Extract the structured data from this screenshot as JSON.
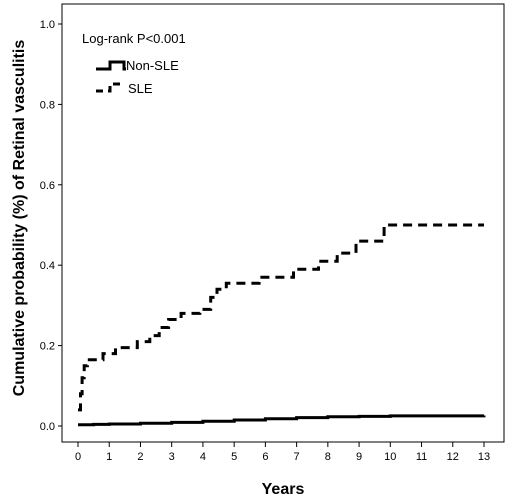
{
  "chart_data": {
    "type": "line",
    "title": "",
    "xlabel": "Years",
    "ylabel": "Cumulative probability (%) of Retinal vasculitis",
    "xlim": [
      0,
      13
    ],
    "ylim": [
      0,
      1.0
    ],
    "x_ticks": [
      "0",
      "1",
      "2",
      "3",
      "4",
      "5",
      "6",
      "7",
      "8",
      "9",
      "10",
      "11",
      "12",
      "13"
    ],
    "y_ticks": [
      "0.0",
      "0.2",
      "0.4",
      "0.6",
      "0.8",
      "1.0"
    ],
    "grid": false,
    "legend_position": "top-left",
    "annotation": "Log-rank P<0.001",
    "series": [
      {
        "name": "Non-SLE",
        "style": "solid",
        "color": "#000000",
        "step_points": [
          [
            0,
            0.003
          ],
          [
            0.5,
            0.004
          ],
          [
            1.0,
            0.005
          ],
          [
            2.0,
            0.007
          ],
          [
            3.0,
            0.009
          ],
          [
            4.0,
            0.012
          ],
          [
            5.0,
            0.015
          ],
          [
            6.0,
            0.018
          ],
          [
            7.0,
            0.021
          ],
          [
            8.0,
            0.023
          ],
          [
            9.0,
            0.024
          ],
          [
            10.0,
            0.025
          ],
          [
            13.0,
            0.026
          ]
        ]
      },
      {
        "name": "SLE",
        "style": "dashed",
        "color": "#000000",
        "step_points": [
          [
            0,
            0.04
          ],
          [
            0.08,
            0.08
          ],
          [
            0.13,
            0.12
          ],
          [
            0.2,
            0.15
          ],
          [
            0.3,
            0.165
          ],
          [
            0.8,
            0.18
          ],
          [
            1.2,
            0.195
          ],
          [
            1.9,
            0.21
          ],
          [
            2.3,
            0.225
          ],
          [
            2.6,
            0.245
          ],
          [
            2.9,
            0.265
          ],
          [
            3.3,
            0.28
          ],
          [
            3.9,
            0.29
          ],
          [
            4.25,
            0.32
          ],
          [
            4.45,
            0.34
          ],
          [
            4.75,
            0.355
          ],
          [
            5.8,
            0.37
          ],
          [
            6.9,
            0.39
          ],
          [
            7.7,
            0.41
          ],
          [
            8.3,
            0.43
          ],
          [
            8.9,
            0.46
          ],
          [
            9.8,
            0.5
          ],
          [
            13.0,
            0.5
          ]
        ]
      }
    ]
  }
}
